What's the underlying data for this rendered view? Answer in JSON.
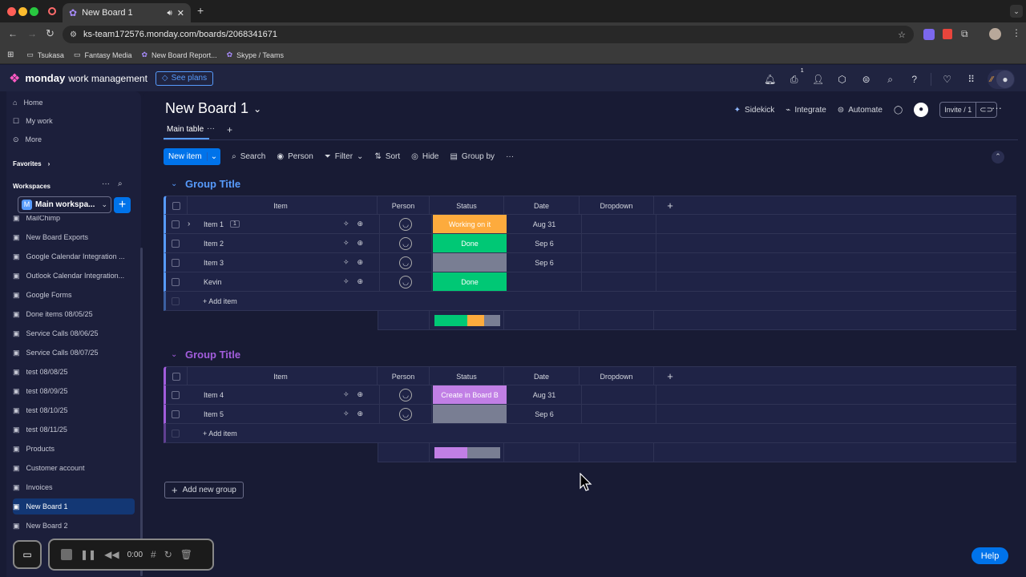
{
  "browser": {
    "tab_title": "New Board 1",
    "url": "ks-team172576.monday.com/boards/2068341671",
    "bookmarks": [
      "Tsukasa",
      "Fantasy Media",
      "New Board Report...",
      "Skype / Teams"
    ]
  },
  "app": {
    "brand_bold": "monday",
    "brand_light": "work management",
    "see_plans": "See plans",
    "inbox_badge": "1"
  },
  "sidebar": {
    "nav": [
      "Home",
      "My work",
      "More"
    ],
    "favorites": "Favorites",
    "workspaces": "Workspaces",
    "workspace_name": "Main workspa...",
    "boards": [
      "MailChimp",
      "New Board Exports",
      "Google Calendar Integration ...",
      "Outlook Calendar Integration...",
      "Google Forms",
      "Done items 08/05/25",
      "Service Calls 08/06/25",
      "Service Calls 08/07/25",
      "test 08/08/25",
      "test 08/09/25",
      "test 08/10/25",
      "test 08/11/25",
      "Products",
      "Customer account",
      "Invoices",
      "New Board 1",
      "New Board 2"
    ]
  },
  "board": {
    "title": "New Board 1",
    "view_tab": "Main table",
    "sidekick": "Sidekick",
    "integrate": "Integrate",
    "automate": "Automate",
    "invite": "Invite / 1"
  },
  "toolbar": {
    "new_item": "New item",
    "search": "Search",
    "person": "Person",
    "filter": "Filter",
    "sort": "Sort",
    "hide": "Hide",
    "group_by": "Group by"
  },
  "columns": {
    "item": "Item",
    "person": "Person",
    "status": "Status",
    "date": "Date",
    "dropdown": "Dropdown"
  },
  "groups": [
    {
      "title": "Group Title",
      "color": "#579bfc",
      "rows": [
        {
          "name": "Item 1",
          "subitems": "1",
          "status": "Working on it",
          "status_color": "#fdab3d",
          "date": "Aug 31"
        },
        {
          "name": "Item 2",
          "subitems": "",
          "status": "Done",
          "status_color": "#00c875",
          "date": "Sep 6"
        },
        {
          "name": "Item 3",
          "subitems": "",
          "status": "",
          "status_color": "#797e93",
          "date": "Sep 6"
        },
        {
          "name": "Kevin",
          "subitems": "",
          "status": "Done",
          "status_color": "#00c875",
          "date": ""
        }
      ],
      "add_item": "+ Add item",
      "summary": [
        {
          "color": "#00c875",
          "share": 0.5
        },
        {
          "color": "#fdab3d",
          "share": 0.25
        },
        {
          "color": "#797e93",
          "share": 0.25
        }
      ]
    },
    {
      "title": "Group Title",
      "color": "#a25ddc",
      "rows": [
        {
          "name": "Item 4",
          "subitems": "",
          "status": "Create in Board B",
          "status_color": "#c17fe5",
          "date": "Aug 31"
        },
        {
          "name": "Item 5",
          "subitems": "",
          "status": "",
          "status_color": "#797e93",
          "date": "Sep 6"
        }
      ],
      "add_item": "+ Add item",
      "summary": [
        {
          "color": "#c17fe5",
          "share": 0.5
        },
        {
          "color": "#797e93",
          "share": 0.5
        }
      ]
    }
  ],
  "add_group": "Add new group",
  "recorder": {
    "time": "0:00"
  },
  "help": "Help"
}
